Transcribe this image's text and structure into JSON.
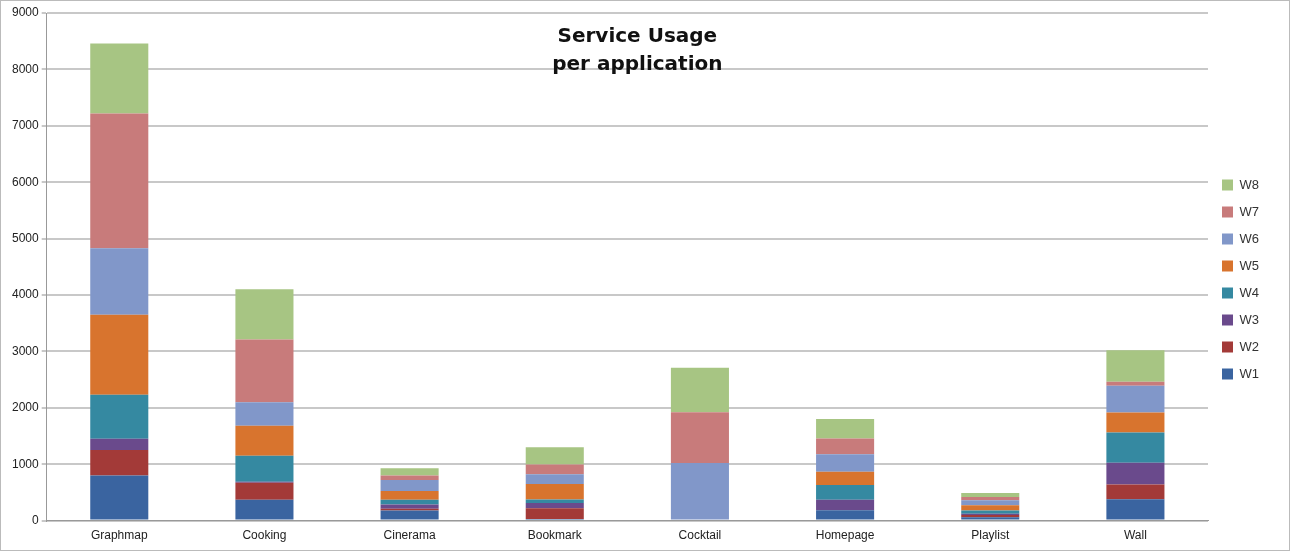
{
  "chart_data": {
    "type": "bar",
    "title": "Service Usage per application",
    "stacked": true,
    "categories": [
      "Graphmap",
      "Cooking",
      "Cinerama",
      "Bookmark",
      "Cocktail",
      "Homepage",
      "Playlist",
      "Wall"
    ],
    "series": [
      {
        "name": "W1",
        "color": "#3a64a0",
        "values": [
          800,
          370,
          180,
          30,
          0,
          185,
          60,
          380
        ]
      },
      {
        "name": "W2",
        "color": "#a33a38",
        "values": [
          450,
          300,
          30,
          190,
          0,
          0,
          40,
          260
        ]
      },
      {
        "name": "W3",
        "color": "#6a4a8c",
        "values": [
          200,
          20,
          75,
          90,
          0,
          185,
          20,
          385
        ]
      },
      {
        "name": "W4",
        "color": "#3589a1",
        "values": [
          780,
          460,
          85,
          65,
          0,
          260,
          60,
          535
        ]
      },
      {
        "name": "W5",
        "color": "#d8742e",
        "values": [
          1420,
          530,
          155,
          275,
          0,
          235,
          90,
          355
        ]
      },
      {
        "name": "W6",
        "color": "#8197c9",
        "values": [
          1180,
          420,
          195,
          170,
          1020,
          310,
          90,
          475
        ]
      },
      {
        "name": "W7",
        "color": "#c87b7b",
        "values": [
          2390,
          1110,
          80,
          175,
          900,
          280,
          60,
          70
        ]
      },
      {
        "name": "W8",
        "color": "#a7c583",
        "values": [
          1240,
          890,
          130,
          305,
          790,
          345,
          70,
          560
        ]
      }
    ],
    "ylim": [
      0,
      9000
    ],
    "yticks": [
      0,
      1000,
      2000,
      3000,
      4000,
      5000,
      6000,
      7000,
      8000,
      9000
    ],
    "grid": "y",
    "legend": "right"
  }
}
